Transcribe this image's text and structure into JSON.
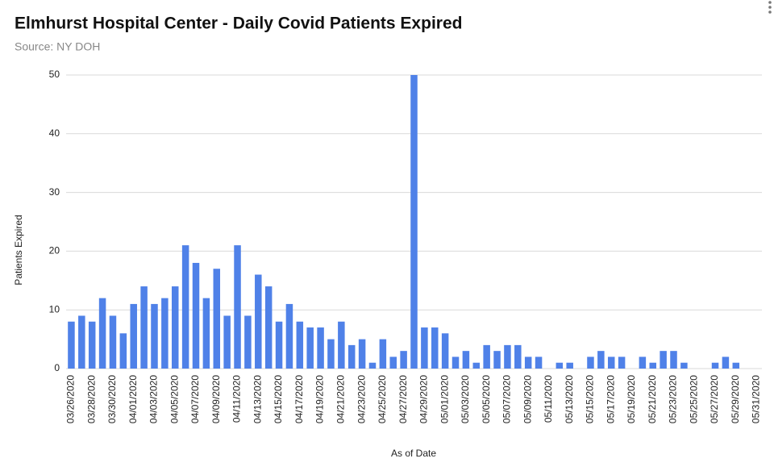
{
  "chart_data": {
    "type": "bar",
    "title": "Elmhurst Hospital Center - Daily Covid Patients Expired",
    "subtitle": "Source: NY DOH",
    "x_label": "As of Date",
    "y_label": "Patients Expired",
    "categories": [
      "03/26/2020",
      null,
      "03/28/2020",
      null,
      "03/30/2020",
      null,
      "04/01/2020",
      null,
      "04/03/2020",
      null,
      "04/05/2020",
      null,
      "04/07/2020",
      null,
      "04/09/2020",
      null,
      "04/11/2020",
      null,
      "04/13/2020",
      null,
      "04/15/2020",
      null,
      "04/17/2020",
      null,
      "04/19/2020",
      null,
      "04/21/2020",
      null,
      "04/23/2020",
      null,
      "04/25/2020",
      null,
      "04/27/2020",
      null,
      "04/29/2020",
      null,
      "05/01/2020",
      null,
      "05/03/2020",
      null,
      "05/05/2020",
      null,
      "05/07/2020",
      null,
      "05/09/2020",
      null,
      "05/11/2020",
      null,
      "05/13/2020",
      null,
      "05/15/2020",
      null,
      "05/17/2020",
      null,
      "05/19/2020",
      null,
      "05/21/2020",
      null,
      "05/23/2020",
      null,
      "05/25/2020",
      null,
      "05/27/2020",
      null,
      "05/29/2020",
      null,
      "05/31/2020"
    ],
    "values": [
      8,
      9,
      8,
      12,
      9,
      6,
      11,
      14,
      11,
      12,
      14,
      21,
      18,
      12,
      17,
      9,
      21,
      9,
      16,
      14,
      8,
      11,
      8,
      7,
      7,
      5,
      8,
      4,
      5,
      1,
      5,
      2,
      3,
      50,
      7,
      7,
      6,
      2,
      3,
      1,
      4,
      3,
      4,
      4,
      2,
      2,
      0,
      1,
      1,
      0,
      2,
      3,
      2,
      2,
      0,
      2,
      1,
      3,
      3,
      1,
      0,
      0,
      1,
      2,
      1,
      0,
      0
    ],
    "color": "#4f81e8",
    "ylim": [
      0,
      50
    ],
    "yticks": [
      0,
      10,
      20,
      30,
      40,
      50
    ],
    "grid": true
  }
}
